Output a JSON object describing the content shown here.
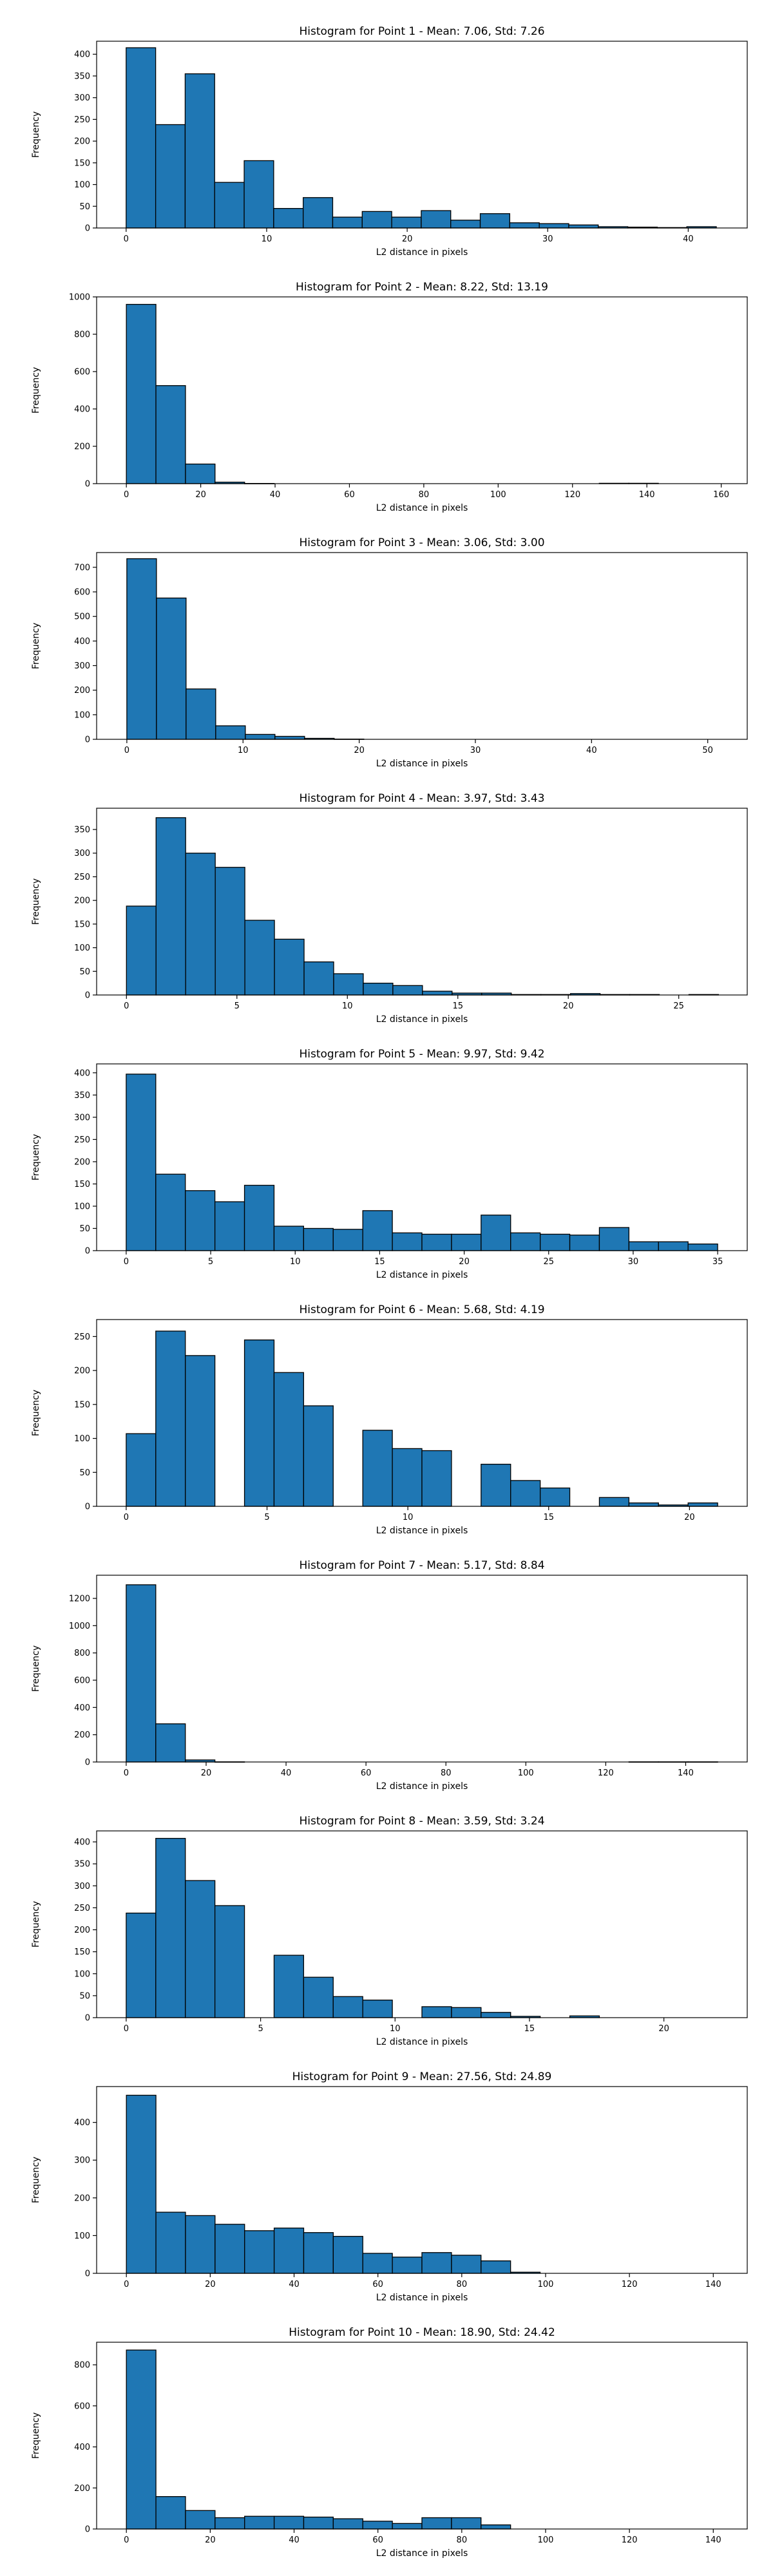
{
  "chart_data": [
    {
      "type": "bar",
      "title": "Histogram for Point 1 - Mean: 7.06, Std: 7.26",
      "xlabel": "L2 distance in pixels",
      "ylabel": "Frequency",
      "xlim": [
        -2.1,
        44.2
      ],
      "ylim": [
        0,
        430
      ],
      "xticks": [
        0,
        10,
        20,
        30,
        40
      ],
      "yticks": [
        0,
        50,
        100,
        150,
        200,
        250,
        300,
        350,
        400
      ],
      "bin_width": 2.1,
      "bin_start": 0,
      "values": [
        415,
        238,
        355,
        105,
        155,
        45,
        70,
        25,
        38,
        25,
        40,
        18,
        33,
        12,
        10,
        7,
        3,
        2,
        1,
        3
      ],
      "color": "#1f77b4"
    },
    {
      "type": "bar",
      "title": "Histogram for Point 2 - Mean: 8.22, Std: 13.19",
      "xlabel": "L2 distance in pixels",
      "ylabel": "Frequency",
      "xlim": [
        -8,
        167
      ],
      "ylim": [
        0,
        1000
      ],
      "xticks": [
        0,
        20,
        40,
        60,
        80,
        100,
        120,
        140,
        160
      ],
      "yticks": [
        0,
        200,
        400,
        600,
        800,
        1000
      ],
      "bin_width": 7.95,
      "bin_start": 0,
      "values": [
        960,
        525,
        105,
        8,
        1,
        0,
        0,
        0,
        0,
        0,
        0,
        0,
        0,
        0,
        0,
        0,
        2,
        2,
        0,
        0
      ],
      "color": "#1f77b4"
    },
    {
      "type": "bar",
      "title": "Histogram for Point 3 - Mean: 3.06, Std: 3.00",
      "xlabel": "L2 distance in pixels",
      "ylabel": "Frequency",
      "xlim": [
        -2.6,
        53.4
      ],
      "ylim": [
        0,
        760
      ],
      "xticks": [
        0,
        10,
        20,
        30,
        40,
        50
      ],
      "yticks": [
        0,
        100,
        200,
        300,
        400,
        500,
        600,
        700
      ],
      "bin_width": 2.55,
      "bin_start": 0,
      "values": [
        735,
        575,
        205,
        55,
        20,
        12,
        4,
        1,
        0,
        0,
        0,
        0,
        0,
        0,
        0,
        0,
        0,
        0,
        0,
        0
      ],
      "color": "#1f77b4"
    },
    {
      "type": "bar",
      "title": "Histogram for Point 4 - Mean: 3.97, Std: 3.43",
      "xlabel": "L2 distance in pixels",
      "ylabel": "Frequency",
      "xlim": [
        -1.35,
        28.1
      ],
      "ylim": [
        0,
        395
      ],
      "xticks": [
        0,
        5,
        10,
        15,
        20,
        25
      ],
      "yticks": [
        0,
        50,
        100,
        150,
        200,
        250,
        300,
        350
      ],
      "bin_width": 1.34,
      "bin_start": 0,
      "values": [
        188,
        375,
        300,
        270,
        158,
        118,
        70,
        45,
        25,
        20,
        8,
        4,
        4,
        1,
        1,
        3,
        1,
        1,
        0,
        1
      ],
      "color": "#1f77b4"
    },
    {
      "type": "bar",
      "title": "Histogram for Point 5 - Mean: 9.97, Std: 9.42",
      "xlabel": "L2 distance in pixels",
      "ylabel": "Frequency",
      "xlim": [
        -1.75,
        36.75
      ],
      "ylim": [
        0,
        420
      ],
      "xticks": [
        0,
        5,
        10,
        15,
        20,
        25,
        30,
        35
      ],
      "yticks": [
        0,
        50,
        100,
        150,
        200,
        250,
        300,
        350,
        400
      ],
      "bin_width": 1.75,
      "bin_start": 0,
      "values": [
        397,
        172,
        135,
        110,
        147,
        55,
        50,
        48,
        90,
        40,
        37,
        37,
        80,
        40,
        37,
        35,
        52,
        20,
        20,
        15
      ],
      "color": "#1f77b4"
    },
    {
      "type": "bar",
      "title": "Histogram for Point 6 - Mean: 5.68, Std: 4.19",
      "xlabel": "L2 distance in pixels",
      "ylabel": "Frequency",
      "xlim": [
        -1.05,
        22.05
      ],
      "ylim": [
        0,
        275
      ],
      "xticks": [
        0,
        5,
        10,
        15,
        20
      ],
      "yticks": [
        0,
        50,
        100,
        150,
        200,
        250
      ],
      "bin_width": 1.05,
      "bin_start": 0,
      "values": [
        107,
        258,
        222,
        0,
        245,
        197,
        148,
        0,
        112,
        85,
        82,
        0,
        62,
        38,
        27,
        0,
        13,
        5,
        2,
        5
      ],
      "color": "#1f77b4"
    },
    {
      "type": "bar",
      "title": "Histogram for Point 7 - Mean: 5.17, Std: 8.84",
      "xlabel": "L2 distance in pixels",
      "ylabel": "Frequency",
      "xlim": [
        -7.4,
        155.4
      ],
      "ylim": [
        0,
        1370
      ],
      "xticks": [
        0,
        20,
        40,
        60,
        80,
        100,
        120,
        140
      ],
      "yticks": [
        0,
        200,
        400,
        600,
        800,
        1000,
        1200
      ],
      "bin_width": 7.4,
      "bin_start": 0,
      "values": [
        1300,
        280,
        15,
        1,
        0,
        0,
        0,
        0,
        0,
        0,
        0,
        0,
        0,
        0,
        0,
        0,
        0,
        1,
        1,
        1
      ],
      "color": "#1f77b4"
    },
    {
      "type": "bar",
      "title": "Histogram for Point 8 - Mean: 3.59, Std: 3.24",
      "xlabel": "L2 distance in pixels",
      "ylabel": "Frequency",
      "xlim": [
        -1.1,
        23.1
      ],
      "ylim": [
        0,
        425
      ],
      "xticks": [
        0,
        5,
        10,
        15,
        20
      ],
      "yticks": [
        0,
        50,
        100,
        150,
        200,
        250,
        300,
        350,
        400
      ],
      "bin_width": 1.1,
      "bin_start": 0,
      "values": [
        238,
        408,
        312,
        255,
        0,
        142,
        92,
        48,
        40,
        0,
        25,
        23,
        12,
        3,
        0,
        4,
        0,
        0,
        0,
        0
      ],
      "color": "#1f77b4"
    },
    {
      "type": "bar",
      "title": "Histogram for Point 9 - Mean: 27.56, Std: 24.89",
      "xlabel": "L2 distance in pixels",
      "ylabel": "Frequency",
      "xlim": [
        -7.1,
        148.1
      ],
      "ylim": [
        0,
        495
      ],
      "xticks": [
        0,
        20,
        40,
        60,
        80,
        100,
        120,
        140
      ],
      "yticks": [
        0,
        100,
        200,
        300,
        400
      ],
      "bin_width": 7.05,
      "bin_start": 0,
      "values": [
        472,
        162,
        153,
        130,
        113,
        120,
        108,
        98,
        53,
        43,
        55,
        48,
        33,
        3,
        0,
        0,
        0,
        0,
        0,
        0
      ],
      "color": "#1f77b4"
    },
    {
      "type": "bar",
      "title": "Histogram for Point 10 - Mean: 18.90, Std: 24.42",
      "xlabel": "L2 distance in pixels",
      "ylabel": "Frequency",
      "xlim": [
        -7.1,
        148.1
      ],
      "ylim": [
        0,
        910
      ],
      "xticks": [
        0,
        20,
        40,
        60,
        80,
        100,
        120,
        140
      ],
      "yticks": [
        0,
        200,
        400,
        600,
        800
      ],
      "bin_width": 7.05,
      "bin_start": 0,
      "values": [
        872,
        158,
        90,
        55,
        62,
        62,
        58,
        50,
        38,
        27,
        55,
        55,
        20,
        0,
        0,
        0,
        0,
        0,
        0,
        0
      ],
      "color": "#1f77b4"
    }
  ]
}
